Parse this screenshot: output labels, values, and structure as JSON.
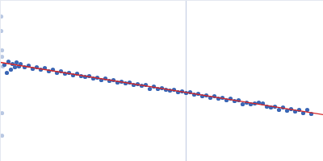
{
  "chart_data": {
    "type": "scatter",
    "xlim": [
      0,
      400
    ],
    "ylim": [
      0,
      200
    ],
    "xticks": [],
    "yticks": [],
    "tick_labels": false,
    "grid": false,
    "series": [
      {
        "type": "line",
        "color": "#c9d3e6",
        "x": [
          230,
          230
        ],
        "values": [
          0,
          200
        ]
      },
      {
        "type": "scatter",
        "marker": "circle",
        "color": "#b9c8e3",
        "x": [
          1,
          1,
          2,
          2,
          3,
          2,
          2
        ],
        "values": [
          180,
          162,
          138,
          130,
          118,
          60,
          32
        ]
      },
      {
        "type": "scatter",
        "marker": "circle",
        "color": "#3a66b5",
        "x": [
          5,
          8,
          10,
          13,
          15,
          18,
          20,
          23,
          25,
          30,
          35,
          40,
          45,
          50,
          55,
          60,
          65,
          70,
          75,
          80,
          85,
          90,
          95,
          100,
          105,
          110,
          115,
          120,
          125,
          130,
          135,
          140,
          145,
          150,
          155,
          160,
          165,
          170,
          175,
          180,
          185,
          190,
          195,
          200,
          205,
          210,
          215,
          220,
          225,
          230,
          235,
          240,
          245,
          250,
          255,
          260,
          265,
          270,
          275,
          280,
          285,
          290,
          295,
          300,
          305,
          310,
          315,
          320,
          325,
          330,
          335,
          340,
          345,
          350,
          355,
          360,
          365,
          370,
          375,
          380,
          385
        ],
        "values": [
          120,
          110,
          124,
          114,
          121,
          117,
          123,
          118,
          121,
          117,
          119,
          115,
          117,
          114,
          116,
          112,
          114,
          110,
          112,
          109,
          110,
          107,
          109,
          106,
          105,
          106,
          103,
          104,
          101,
          103,
          100,
          101,
          98,
          99,
          97,
          98,
          95,
          96,
          94,
          95,
          90,
          93,
          90,
          91,
          89,
          88,
          89,
          86,
          87,
          85,
          86,
          83,
          84,
          81,
          82,
          79,
          81,
          78,
          79,
          76,
          78,
          75,
          76,
          71,
          73,
          71,
          72,
          73,
          72,
          68,
          67,
          68,
          64,
          67,
          63,
          65,
          62,
          64,
          60,
          64,
          59
        ]
      },
      {
        "type": "line",
        "color": "#d62728",
        "x": [
          0,
          400
        ],
        "values": [
          123,
          58
        ]
      }
    ]
  }
}
